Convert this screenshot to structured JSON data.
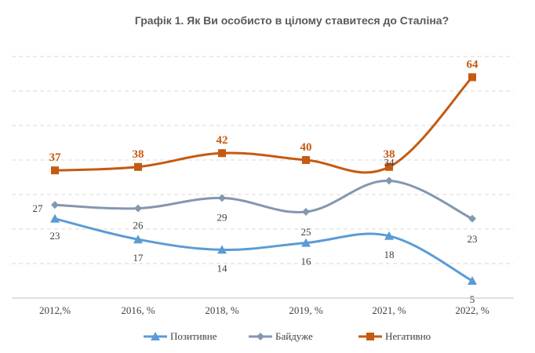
{
  "chart_data": {
    "type": "line",
    "title": "Графік 1. Як Ви особисто в цілому ставитеся до Сталіна?",
    "categories": [
      "2012,%",
      "2016, %",
      "2018, %",
      "2019, %",
      "2021, %",
      "2022, %"
    ],
    "series": [
      {
        "name": "Позитивне",
        "values": [
          23,
          17,
          14,
          16,
          18,
          5
        ],
        "color": "#5b9bd5",
        "marker": "triangle",
        "label_pos": "below"
      },
      {
        "name": "Байдуже",
        "values": [
          27,
          26,
          29,
          25,
          34,
          23
        ],
        "color": "#8497b0",
        "marker": "diamond",
        "label_pos": "mixed"
      },
      {
        "name": "Негативно",
        "values": [
          37,
          38,
          42,
          40,
          38,
          64
        ],
        "color": "#c55a11",
        "marker": "square",
        "label_pos": "above"
      }
    ],
    "ylim": [
      0,
      70
    ],
    "grid": true,
    "legend": "bottom"
  }
}
